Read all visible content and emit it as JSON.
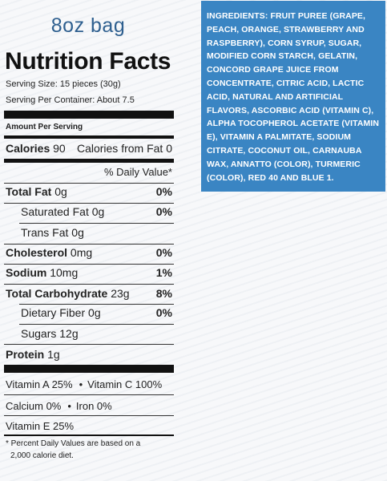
{
  "size_label": "8oz bag",
  "nutrition": {
    "title": "Nutrition Facts",
    "serving_size": "Serving Size: 15 pieces (30g)",
    "servings_per_container": "Serving Per Container: About 7.5",
    "amount_per_serving": "Amount Per Serving",
    "calories_label": "Calories",
    "calories_value": "90",
    "calories_fat_label": "Calories from Fat",
    "calories_fat_value": "0",
    "daily_value_header": "% Daily Value*",
    "rows": [
      {
        "label": "Total Fat",
        "amount": "0g",
        "dv": "0%"
      },
      {
        "label": "Saturated Fat",
        "amount": "0g",
        "dv": "0%"
      },
      {
        "label": "Trans Fat",
        "amount": "0g",
        "dv": ""
      },
      {
        "label": "Cholesterol",
        "amount": "0mg",
        "dv": "0%"
      },
      {
        "label": "Sodium",
        "amount": "10mg",
        "dv": "1%"
      },
      {
        "label": "Total Carbohydrate",
        "amount": "23g",
        "dv": "8%"
      },
      {
        "label": "Dietary Fiber",
        "amount": "0g",
        "dv": "0%"
      },
      {
        "label": "Sugars",
        "amount": "12g",
        "dv": ""
      },
      {
        "label": "Protein",
        "amount": "1g",
        "dv": ""
      }
    ],
    "vitamins": {
      "vitamin_a": "Vitamin A 25%",
      "vitamin_c": "Vitamin C 100%",
      "calcium": "Calcium 0%",
      "iron": "Iron 0%",
      "vitamin_e": "Vitamin E 25%",
      "separator": "•"
    },
    "footnote_line1": "* Percent Daily Values are based on a",
    "footnote_line2": "2,000 calorie diet."
  },
  "ingredients": "INGREDIENTS: FRUIT PUREE (GRAPE, PEACH, ORANGE, STRAWBERRY AND RASPBERRY), CORN SYRUP, SUGAR, MODIFIED CORN STARCH, GELATIN, CONCORD GRAPE JUICE FROM CONCENTRATE, CITRIC ACID, LACTIC ACID, NATURAL AND ARTIFICIAL FLAVORS, ASCORBIC ACID (VITAMIN C), ALPHA TOCOPHEROL ACETATE (VITAMIN E), VITAMIN A PALMITATE, SODIUM CITRATE, COCONUT OIL, CARNAUBA WAX, ANNATTO (COLOR), TURMERIC (COLOR), RED 40 AND BLUE 1.",
  "colors": {
    "size_label": "#2e5f8f",
    "ingredients_bg": "#3a85c3"
  }
}
